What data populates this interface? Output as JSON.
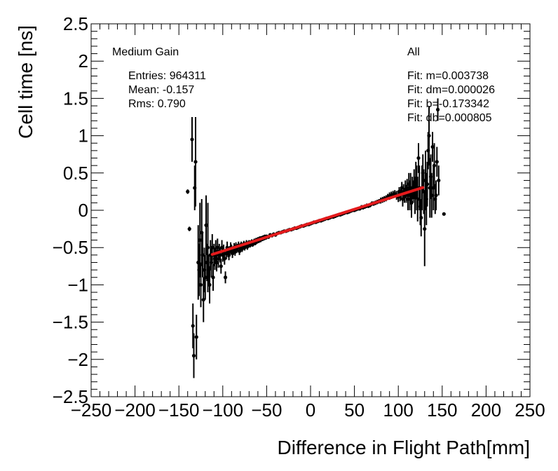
{
  "chart_data": {
    "type": "scatter",
    "title": "",
    "xlabel": "Difference in Flight Path[mm]",
    "ylabel": "Cell time [ns]",
    "xlim": [
      -250,
      250
    ],
    "ylim": [
      -2.5,
      2.5
    ],
    "xticks": [
      -250,
      -200,
      -150,
      -100,
      -50,
      0,
      50,
      100,
      150,
      200,
      250
    ],
    "xtick_labels": [
      "−250",
      "−200",
      "−150",
      "−100",
      "−50",
      "0",
      "50",
      "100",
      "150",
      "200",
      "250"
    ],
    "yticks": [
      -2.5,
      -2,
      -1.5,
      -1,
      -0.5,
      0,
      0.5,
      1,
      1.5,
      2,
      2.5
    ],
    "ytick_labels": [
      "−2.5",
      "−2",
      "−1.5",
      "−1",
      "−0.5",
      "0",
      "0.5",
      "1",
      "1.5",
      "2",
      "2.5"
    ],
    "grid": false,
    "annotations": {
      "gain": "Medium Gain",
      "entries": "Entries: 964311",
      "mean": "Mean: -0.157",
      "rms": "Rms: 0.790",
      "category": "All",
      "fit_m": "Fit: m=0.003738",
      "fit_dm": "Fit: dm=0.000026",
      "fit_b": "Fit: b=-0.173342",
      "fit_db": "Fit: db=0.000805"
    },
    "fit": {
      "slope": 0.003738,
      "intercept": -0.173342,
      "x_range": [
        -112,
        128
      ],
      "color": "#e41a1c"
    },
    "series": [
      {
        "name": "data",
        "color": "#000000",
        "points": [
          [
            -140,
            0.25,
            0.03
          ],
          [
            -138,
            -0.25,
            0.03
          ],
          [
            -135,
            0.95,
            0.3
          ],
          [
            -134,
            -1.55,
            0.3
          ],
          [
            -133,
            -1.95,
            0.3
          ],
          [
            -132,
            0.3,
            0.3
          ],
          [
            -131,
            0.65,
            0.6
          ],
          [
            -130,
            -1.7,
            0.3
          ],
          [
            -128,
            -0.7,
            0.5
          ],
          [
            -127,
            -0.8,
            0.35
          ],
          [
            -126,
            -0.4,
            0.5
          ],
          [
            -125,
            -1.0,
            0.3
          ],
          [
            -124,
            -0.3,
            0.45
          ],
          [
            -123,
            -0.6,
            0.3
          ],
          [
            -122,
            -1.2,
            0.3
          ],
          [
            -121,
            -0.8,
            0.3
          ],
          [
            -120,
            -0.9,
            0.3
          ],
          [
            -119,
            -0.2,
            0.4
          ],
          [
            -118,
            -0.7,
            0.25
          ],
          [
            -117,
            -0.5,
            0.6
          ],
          [
            -116,
            -0.8,
            0.2
          ],
          [
            -115,
            -1.0,
            0.25
          ],
          [
            -114,
            -0.6,
            0.2
          ],
          [
            -113,
            -0.7,
            0.2
          ],
          [
            -112,
            -0.5,
            0.18
          ],
          [
            -111,
            -0.9,
            0.18
          ],
          [
            -110,
            -0.6,
            0.15
          ],
          [
            -109,
            -0.65,
            0.15
          ],
          [
            -108,
            -0.55,
            0.15
          ],
          [
            -107,
            -0.7,
            0.12
          ],
          [
            -106,
            -0.5,
            0.12
          ],
          [
            -105,
            -0.65,
            0.12
          ],
          [
            -104,
            -0.55,
            0.1
          ],
          [
            -103,
            -0.6,
            0.1
          ],
          [
            -102,
            -0.75,
            0.1
          ],
          [
            -101,
            -0.5,
            0.1
          ],
          [
            -100,
            -0.6,
            0.09
          ],
          [
            -99,
            -0.55,
            0.09
          ],
          [
            -98,
            -0.65,
            0.08
          ],
          [
            -97,
            -0.9,
            0.08
          ],
          [
            -96,
            -0.58,
            0.08
          ],
          [
            -95,
            -0.5,
            0.08
          ],
          [
            -94,
            -0.56,
            0.07
          ],
          [
            -93,
            -0.6,
            0.07
          ],
          [
            -92,
            -0.55,
            0.07
          ],
          [
            -91,
            -0.5,
            0.07
          ],
          [
            -90,
            -0.52,
            0.06
          ],
          [
            -89,
            -0.58,
            0.06
          ],
          [
            -88,
            -0.54,
            0.06
          ],
          [
            -87,
            -0.5,
            0.06
          ],
          [
            -86,
            -0.56,
            0.05
          ],
          [
            -85,
            -0.48,
            0.05
          ],
          [
            -84,
            -0.52,
            0.05
          ],
          [
            -83,
            -0.5,
            0.05
          ],
          [
            -82,
            -0.47,
            0.05
          ],
          [
            -81,
            -0.55,
            0.05
          ],
          [
            -80,
            -0.5,
            0.05
          ],
          [
            -79,
            -0.46,
            0.04
          ],
          [
            -78,
            -0.52,
            0.04
          ],
          [
            -77,
            -0.48,
            0.04
          ],
          [
            -76,
            -0.45,
            0.04
          ],
          [
            -75,
            -0.5,
            0.04
          ],
          [
            -74,
            -0.47,
            0.04
          ],
          [
            -73,
            -0.44,
            0.04
          ],
          [
            -72,
            -0.49,
            0.04
          ],
          [
            -71,
            -0.45,
            0.03
          ],
          [
            -70,
            -0.43,
            0.03
          ],
          [
            -69,
            -0.47,
            0.03
          ],
          [
            -68,
            -0.44,
            0.03
          ],
          [
            -67,
            -0.42,
            0.03
          ],
          [
            -66,
            -0.46,
            0.03
          ],
          [
            -65,
            -0.43,
            0.03
          ],
          [
            -64,
            -0.41,
            0.03
          ],
          [
            -63,
            -0.44,
            0.03
          ],
          [
            -62,
            -0.4,
            0.03
          ],
          [
            -61,
            -0.42,
            0.03
          ],
          [
            -60,
            -0.39,
            0.03
          ],
          [
            -59,
            -0.41,
            0.03
          ],
          [
            -58,
            -0.38,
            0.03
          ],
          [
            -57,
            -0.4,
            0.03
          ],
          [
            -56,
            -0.37,
            0.02
          ],
          [
            -55,
            -0.39,
            0.02
          ],
          [
            -54,
            -0.36,
            0.02
          ],
          [
            -53,
            -0.38,
            0.02
          ],
          [
            -52,
            -0.35,
            0.02
          ],
          [
            -51,
            -0.37,
            0.02
          ],
          [
            -50,
            -0.35,
            0.02
          ],
          [
            -48,
            -0.36,
            0.02
          ],
          [
            -46,
            -0.33,
            0.02
          ],
          [
            -44,
            -0.34,
            0.02
          ],
          [
            -42,
            -0.32,
            0.02
          ],
          [
            -40,
            -0.33,
            0.02
          ],
          [
            -38,
            -0.31,
            0.02
          ],
          [
            -36,
            -0.3,
            0.02
          ],
          [
            -34,
            -0.3,
            0.02
          ],
          [
            -32,
            -0.29,
            0.02
          ],
          [
            -30,
            -0.28,
            0.02
          ],
          [
            -28,
            -0.28,
            0.02
          ],
          [
            -26,
            -0.27,
            0.02
          ],
          [
            -24,
            -0.26,
            0.02
          ],
          [
            -22,
            -0.26,
            0.02
          ],
          [
            -20,
            -0.25,
            0.02
          ],
          [
            -18,
            -0.24,
            0.02
          ],
          [
            -16,
            -0.24,
            0.02
          ],
          [
            -14,
            -0.23,
            0.02
          ],
          [
            -12,
            -0.22,
            0.02
          ],
          [
            -10,
            -0.21,
            0.02
          ],
          [
            -8,
            -0.21,
            0.02
          ],
          [
            -6,
            -0.2,
            0.02
          ],
          [
            -4,
            -0.19,
            0.02
          ],
          [
            -2,
            -0.19,
            0.02
          ],
          [
            0,
            -0.18,
            0.02
          ],
          [
            2,
            -0.17,
            0.02
          ],
          [
            4,
            -0.16,
            0.02
          ],
          [
            6,
            -0.16,
            0.02
          ],
          [
            8,
            -0.15,
            0.02
          ],
          [
            10,
            -0.14,
            0.02
          ],
          [
            12,
            -0.14,
            0.02
          ],
          [
            14,
            -0.13,
            0.02
          ],
          [
            16,
            -0.12,
            0.02
          ],
          [
            18,
            -0.11,
            0.02
          ],
          [
            20,
            -0.11,
            0.02
          ],
          [
            22,
            -0.1,
            0.02
          ],
          [
            24,
            -0.09,
            0.02
          ],
          [
            26,
            -0.09,
            0.02
          ],
          [
            28,
            -0.08,
            0.02
          ],
          [
            30,
            -0.07,
            0.02
          ],
          [
            32,
            -0.06,
            0.02
          ],
          [
            34,
            -0.06,
            0.02
          ],
          [
            36,
            -0.05,
            0.02
          ],
          [
            38,
            -0.04,
            0.02
          ],
          [
            40,
            -0.03,
            0.02
          ],
          [
            42,
            -0.03,
            0.02
          ],
          [
            44,
            -0.02,
            0.02
          ],
          [
            46,
            -0.01,
            0.02
          ],
          [
            48,
            0.0,
            0.02
          ],
          [
            50,
            0.0,
            0.02
          ],
          [
            52,
            0.01,
            0.02
          ],
          [
            54,
            0.02,
            0.02
          ],
          [
            56,
            0.02,
            0.02
          ],
          [
            58,
            0.04,
            0.03
          ],
          [
            60,
            0.04,
            0.03
          ],
          [
            62,
            0.05,
            0.03
          ],
          [
            64,
            0.06,
            0.03
          ],
          [
            66,
            0.06,
            0.03
          ],
          [
            68,
            0.07,
            0.03
          ],
          [
            70,
            0.09,
            0.03
          ],
          [
            72,
            0.09,
            0.03
          ],
          [
            74,
            0.1,
            0.03
          ],
          [
            76,
            0.11,
            0.03
          ],
          [
            78,
            0.12,
            0.03
          ],
          [
            80,
            0.13,
            0.04
          ],
          [
            82,
            0.14,
            0.04
          ],
          [
            84,
            0.15,
            0.04
          ],
          [
            86,
            0.16,
            0.04
          ],
          [
            88,
            0.18,
            0.04
          ],
          [
            90,
            0.19,
            0.05
          ],
          [
            92,
            0.2,
            0.05
          ],
          [
            94,
            0.21,
            0.05
          ],
          [
            96,
            0.22,
            0.05
          ],
          [
            98,
            0.2,
            0.06
          ],
          [
            100,
            0.18,
            0.07
          ],
          [
            101,
            0.25,
            0.06
          ],
          [
            102,
            0.2,
            0.08
          ],
          [
            103,
            0.22,
            0.08
          ],
          [
            104,
            0.3,
            0.08
          ],
          [
            105,
            0.15,
            0.1
          ],
          [
            106,
            0.25,
            0.1
          ],
          [
            107,
            0.2,
            0.1
          ],
          [
            108,
            0.28,
            0.12
          ],
          [
            109,
            0.22,
            0.12
          ],
          [
            110,
            0.3,
            0.12
          ],
          [
            111,
            0.15,
            0.15
          ],
          [
            112,
            0.35,
            0.15
          ],
          [
            113,
            0.2,
            0.2
          ],
          [
            114,
            0.3,
            0.2
          ],
          [
            115,
            0.1,
            0.2
          ],
          [
            116,
            0.3,
            0.15
          ],
          [
            117,
            0.25,
            0.15
          ],
          [
            118,
            0.35,
            0.2
          ],
          [
            119,
            0.2,
            0.25
          ],
          [
            120,
            0.4,
            0.25
          ],
          [
            121,
            0.3,
            0.3
          ],
          [
            122,
            0.15,
            0.3
          ],
          [
            123,
            0.7,
            0.2
          ],
          [
            124,
            0.3,
            0.3
          ],
          [
            125,
            0.05,
            0.25
          ],
          [
            126,
            -0.1,
            0.25
          ],
          [
            127,
            0.3,
            0.3
          ],
          [
            128,
            0.5,
            0.25
          ],
          [
            129,
            0.25,
            0.3
          ],
          [
            130,
            -0.25,
            0.5
          ],
          [
            131,
            0.4,
            0.4
          ],
          [
            132,
            0.15,
            0.35
          ],
          [
            133,
            0.35,
            0.3
          ],
          [
            134,
            0.8,
            0.25
          ],
          [
            135,
            1.0,
            0.4
          ],
          [
            136,
            0.3,
            0.4
          ],
          [
            137,
            0.45,
            0.3
          ],
          [
            138,
            0.2,
            0.3
          ],
          [
            139,
            0.85,
            0.2
          ],
          [
            140,
            0.3,
            0.3
          ],
          [
            141,
            0.6,
            0.3
          ],
          [
            142,
            0.15,
            0.2
          ],
          [
            143,
            0.2,
            0.2
          ],
          [
            144,
            0.65,
            0.2
          ],
          [
            145,
            1.35,
            0.15
          ],
          [
            146,
            0.4,
            0.2
          ],
          [
            152,
            -0.05,
            0.02
          ]
        ]
      }
    ]
  }
}
